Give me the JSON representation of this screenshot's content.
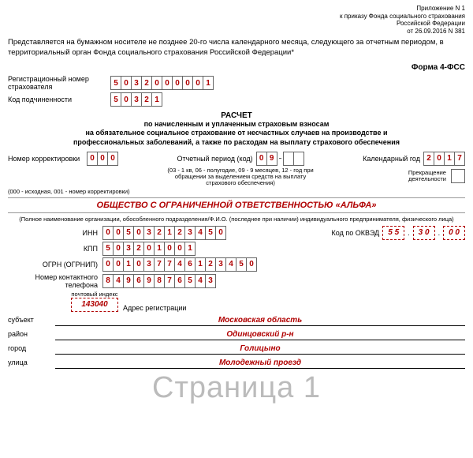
{
  "header": {
    "app_line1": "Приложение N 1",
    "app_line2": "к приказу Фонда социального страхования",
    "app_line3": "Российской Федерации",
    "app_line4": "от 26.09.2016 N 381"
  },
  "intro": "Представляется на бумажном носителе не позднее 20-го числа календарного месяца, следующего за отчетным периодом, в территориальный орган Фонда социального страхования Российской Федерации*",
  "form_name": "Форма 4-ФСС",
  "reg": {
    "label": "Регистрационный номер страхователя",
    "digits": [
      "5",
      "0",
      "3",
      "2",
      "0",
      "0",
      "0",
      "0",
      "0",
      "1"
    ]
  },
  "sub": {
    "label": "Код подчиненности",
    "digits": [
      "5",
      "0",
      "3",
      "2",
      "1"
    ]
  },
  "title": {
    "main": "РАСЧЕТ",
    "l1": "по начисленным и уплаченным страховым взносам",
    "l2": "на обязательное социальное страхование от несчастных случаев на производстве и",
    "l3": "профессиональных заболеваний, а также по расходам на выплату страхового обеспечения"
  },
  "corr": {
    "label": "Номер корректировки",
    "digits": [
      "0",
      "0",
      "0"
    ],
    "note": "(000 - исходная, 001 - номер корректировки)"
  },
  "period": {
    "label": "Отчетный период (код)",
    "d1": [
      "0",
      "9"
    ],
    "d2": [
      "",
      ""
    ],
    "note": "(03 - 1 кв, 06 - полугодие, 09 - 9 месяцев, 12 - год при обращении за выделением средств на выплату страхового обеспечения)"
  },
  "year": {
    "label": "Календарный год",
    "digits": [
      "2",
      "0",
      "1",
      "7"
    ],
    "cease": "Прекращение деятельности"
  },
  "org": {
    "name": "ОБЩЕСТВО С ОГРАНИЧЕННОЙ ОТВЕТСТВЕННОСТЬЮ «АЛЬФА»",
    "note": "(Полное наименование организации, обособленного подразделения/Ф.И.О. (последнее при наличии) индивидуального предпринимателя, физического лица)"
  },
  "inn": {
    "label": "ИНН",
    "digits": [
      "0",
      "0",
      "5",
      "0",
      "3",
      "2",
      "1",
      "2",
      "3",
      "4",
      "5",
      "0"
    ]
  },
  "kpp": {
    "label": "КПП",
    "digits": [
      "5",
      "0",
      "3",
      "2",
      "0",
      "1",
      "0",
      "0",
      "1"
    ]
  },
  "ogrn": {
    "label": "ОГРН (ОГРНИП)",
    "digits": [
      "0",
      "0",
      "1",
      "0",
      "3",
      "7",
      "7",
      "4",
      "6",
      "1",
      "2",
      "3",
      "4",
      "5",
      "0"
    ]
  },
  "phone": {
    "label": "Номер контактного телефона",
    "digits": [
      "8",
      "4",
      "9",
      "6",
      "9",
      "8",
      "7",
      "6",
      "5",
      "4",
      "3"
    ]
  },
  "okved": {
    "label": "Код по ОКВЭД",
    "g1": [
      "5",
      "5"
    ],
    "g2": [
      "3",
      "0"
    ],
    "g3": [
      "0",
      "0"
    ]
  },
  "addr": {
    "pc_label": "почтовый индекс",
    "postcode": "143040",
    "reg_label": "Адрес регистрации",
    "subject_label": "субъект",
    "subject": "Московская область",
    "district_label": "район",
    "district": "Одинцовский р-н",
    "city_label": "город",
    "city": "Голицыно",
    "street_label": "улица",
    "street": "Молодежный проезд"
  },
  "watermark": "Страница 1"
}
